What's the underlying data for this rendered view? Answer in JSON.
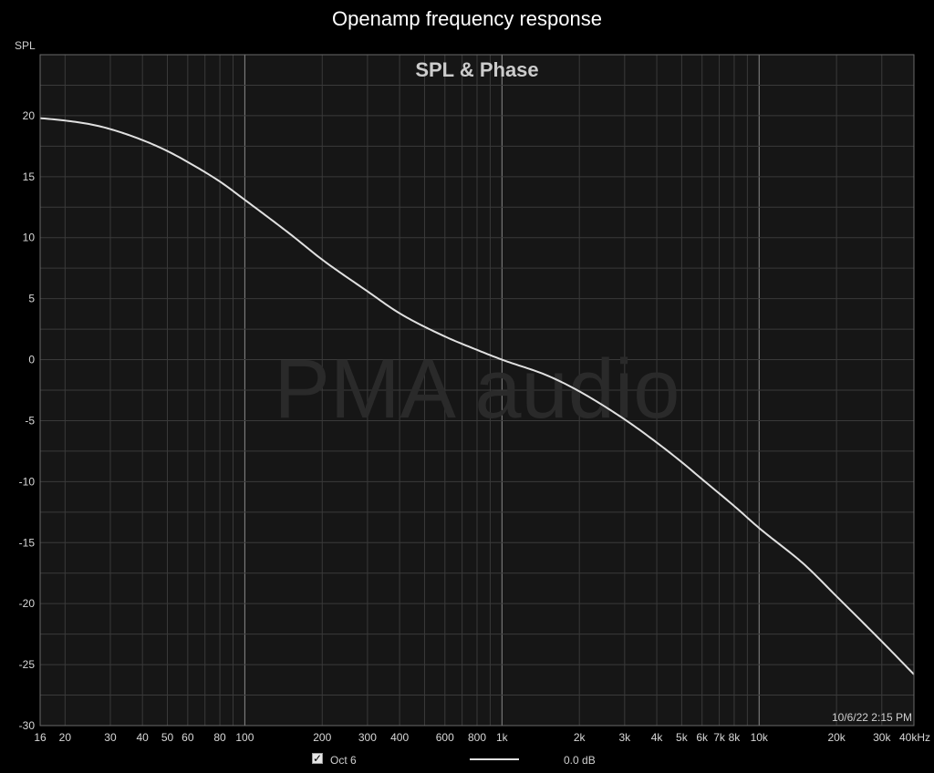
{
  "window_title": "Openamp frequency response",
  "timestamp": "10/6/22 2:15 PM",
  "watermark": "PMA audio",
  "legend": {
    "checked": true,
    "check_glyph": "✓",
    "series_name": "Oct 6",
    "offset": "0.0 dB"
  },
  "colors": {
    "background": "#000000",
    "plot_background": "#161616",
    "grid": "#3a3a3a",
    "decade_grid": "#8a8a8a",
    "curve": "#e0e0e0",
    "text": "#d8d8d8"
  },
  "chart_data": {
    "type": "line",
    "title": "SPL & Phase",
    "xlabel": "",
    "ylabel": "SPL",
    "x_scale": "log",
    "xlim": [
      16,
      40000
    ],
    "ylim": [
      -30,
      25
    ],
    "grid": true,
    "x_ticks": [
      {
        "value": 16,
        "label": "16"
      },
      {
        "value": 20,
        "label": "20"
      },
      {
        "value": 30,
        "label": "30"
      },
      {
        "value": 40,
        "label": "40"
      },
      {
        "value": 50,
        "label": "50"
      },
      {
        "value": 60,
        "label": "60"
      },
      {
        "value": 80,
        "label": "80"
      },
      {
        "value": 100,
        "label": "100"
      },
      {
        "value": 200,
        "label": "200"
      },
      {
        "value": 300,
        "label": "300"
      },
      {
        "value": 400,
        "label": "400"
      },
      {
        "value": 600,
        "label": "600"
      },
      {
        "value": 800,
        "label": "800"
      },
      {
        "value": 1000,
        "label": "1k"
      },
      {
        "value": 2000,
        "label": "2k"
      },
      {
        "value": 3000,
        "label": "3k"
      },
      {
        "value": 4000,
        "label": "4k"
      },
      {
        "value": 5000,
        "label": "5k"
      },
      {
        "value": 6000,
        "label": "6k"
      },
      {
        "value": 7000,
        "label": "7k"
      },
      {
        "value": 8000,
        "label": "8k"
      },
      {
        "value": 10000,
        "label": "10k"
      },
      {
        "value": 20000,
        "label": "20k"
      },
      {
        "value": 30000,
        "label": "30k"
      },
      {
        "value": 40000,
        "label": "40kHz"
      }
    ],
    "y_ticks": [
      {
        "value": 20,
        "label": "20"
      },
      {
        "value": 15,
        "label": "15"
      },
      {
        "value": 10,
        "label": "10"
      },
      {
        "value": 5,
        "label": "5"
      },
      {
        "value": 0,
        "label": "0"
      },
      {
        "value": -5,
        "label": "-5"
      },
      {
        "value": -10,
        "label": "-10"
      },
      {
        "value": -15,
        "label": "-15"
      },
      {
        "value": -20,
        "label": "-20"
      },
      {
        "value": -25,
        "label": "-25"
      },
      {
        "value": -30,
        "label": "-30"
      }
    ],
    "series": [
      {
        "name": "Oct 6",
        "x": [
          16,
          20,
          25,
          30,
          40,
          50,
          60,
          80,
          100,
          150,
          200,
          300,
          400,
          600,
          800,
          1000,
          1500,
          2000,
          3000,
          4000,
          5000,
          6000,
          8000,
          10000,
          15000,
          20000,
          30000,
          40000
        ],
        "y": [
          19.8,
          19.6,
          19.3,
          18.9,
          18.0,
          17.1,
          16.2,
          14.6,
          13.1,
          10.3,
          8.2,
          5.6,
          3.8,
          1.9,
          0.8,
          0.0,
          -1.3,
          -2.6,
          -4.9,
          -6.8,
          -8.4,
          -9.8,
          -12.0,
          -13.8,
          -16.8,
          -19.4,
          -23.1,
          -25.8
        ]
      }
    ]
  }
}
